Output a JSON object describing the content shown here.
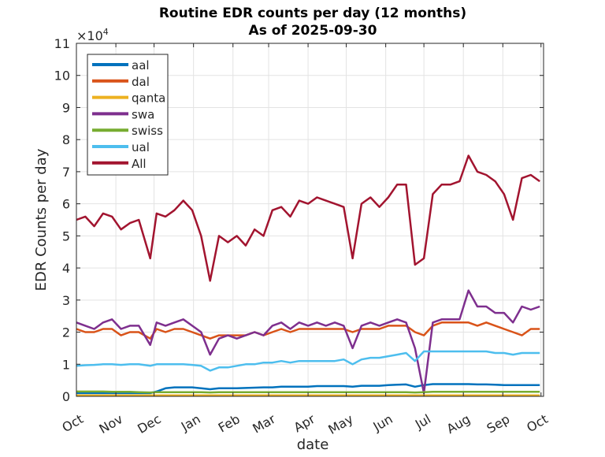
{
  "chart_data": {
    "type": "line",
    "title": "Routine EDR counts per day (12 months)",
    "subtitle": "As of 2025-09-30",
    "xlabel": "date",
    "ylabel": "EDR Counts per day",
    "y_exponent_label": "×10^4",
    "y_multiplier": 10000,
    "ylim": [
      0,
      11
    ],
    "yticks": [
      "0",
      "1",
      "2",
      "3",
      "4",
      "5",
      "6",
      "7",
      "8",
      "9",
      "10",
      "11"
    ],
    "xlim": [
      "2024-10-01",
      "2025-10-03"
    ],
    "xticks": [
      {
        "date": "2024-10-01",
        "label": "Oct"
      },
      {
        "date": "2024-11-01",
        "label": "Nov"
      },
      {
        "date": "2024-12-01",
        "label": "Dec"
      },
      {
        "date": "2025-01-01",
        "label": "Jan"
      },
      {
        "date": "2025-02-01",
        "label": "Feb"
      },
      {
        "date": "2025-03-01",
        "label": "Mar"
      },
      {
        "date": "2025-04-01",
        "label": "Apr"
      },
      {
        "date": "2025-05-01",
        "label": "May"
      },
      {
        "date": "2025-06-01",
        "label": "Jun"
      },
      {
        "date": "2025-07-01",
        "label": "Jul"
      },
      {
        "date": "2025-08-01",
        "label": "Aug"
      },
      {
        "date": "2025-09-01",
        "label": "Sep"
      },
      {
        "date": "2025-10-01",
        "label": "Oct"
      }
    ],
    "grid": true,
    "legend_position": "top-left",
    "x": [
      "2024-10-01",
      "2024-10-08",
      "2024-10-15",
      "2024-10-22",
      "2024-10-29",
      "2024-11-05",
      "2024-11-12",
      "2024-11-19",
      "2024-11-28",
      "2024-12-03",
      "2024-12-10",
      "2024-12-17",
      "2024-12-24",
      "2024-12-31",
      "2025-01-07",
      "2025-01-14",
      "2025-01-21",
      "2025-01-28",
      "2025-02-04",
      "2025-02-11",
      "2025-02-18",
      "2025-02-25",
      "2025-03-04",
      "2025-03-11",
      "2025-03-18",
      "2025-03-25",
      "2025-04-01",
      "2025-04-08",
      "2025-04-15",
      "2025-04-22",
      "2025-04-29",
      "2025-05-06",
      "2025-05-13",
      "2025-05-20",
      "2025-05-27",
      "2025-06-03",
      "2025-06-10",
      "2025-06-17",
      "2025-06-24",
      "2025-07-01",
      "2025-07-08",
      "2025-07-15",
      "2025-07-22",
      "2025-07-29",
      "2025-08-05",
      "2025-08-12",
      "2025-08-19",
      "2025-08-26",
      "2025-09-02",
      "2025-09-09",
      "2025-09-16",
      "2025-09-23",
      "2025-09-30"
    ],
    "series": [
      {
        "name": "aal",
        "color": "#0072BD",
        "values": [
          0.1,
          0.1,
          0.1,
          0.1,
          0.1,
          0.1,
          0.1,
          0.1,
          0.1,
          0.15,
          0.25,
          0.28,
          0.28,
          0.28,
          0.25,
          0.22,
          0.25,
          0.25,
          0.25,
          0.26,
          0.27,
          0.28,
          0.28,
          0.3,
          0.3,
          0.3,
          0.3,
          0.32,
          0.32,
          0.32,
          0.32,
          0.3,
          0.33,
          0.33,
          0.33,
          0.35,
          0.36,
          0.37,
          0.3,
          0.35,
          0.38,
          0.38,
          0.38,
          0.38,
          0.38,
          0.37,
          0.37,
          0.36,
          0.35,
          0.35,
          0.35,
          0.35,
          0.35
        ]
      },
      {
        "name": "dal",
        "color": "#D95319",
        "values": [
          2.1,
          2.0,
          2.0,
          2.1,
          2.1,
          1.9,
          2.0,
          2.0,
          1.8,
          2.1,
          2.0,
          2.1,
          2.1,
          2.0,
          1.9,
          1.8,
          1.9,
          1.9,
          1.9,
          1.9,
          2.0,
          1.9,
          2.0,
          2.1,
          2.0,
          2.1,
          2.1,
          2.1,
          2.1,
          2.1,
          2.1,
          2.0,
          2.1,
          2.1,
          2.1,
          2.2,
          2.2,
          2.2,
          2.0,
          1.9,
          2.2,
          2.3,
          2.3,
          2.3,
          2.3,
          2.2,
          2.3,
          2.2,
          2.1,
          2.0,
          1.9,
          2.1,
          2.1
        ]
      },
      {
        "name": "qanta",
        "color": "#EDB120",
        "values": [
          0.03,
          0.03,
          0.03,
          0.03,
          0.03,
          0.03,
          0.03,
          0.03,
          0.03,
          0.03,
          0.03,
          0.03,
          0.03,
          0.03,
          0.03,
          0.03,
          0.03,
          0.03,
          0.03,
          0.03,
          0.03,
          0.03,
          0.03,
          0.03,
          0.03,
          0.03,
          0.03,
          0.03,
          0.03,
          0.03,
          0.03,
          0.03,
          0.03,
          0.03,
          0.03,
          0.03,
          0.03,
          0.03,
          0.03,
          0.03,
          0.03,
          0.03,
          0.03,
          0.03,
          0.03,
          0.03,
          0.03,
          0.03,
          0.03,
          0.03,
          0.03,
          0.03,
          0.03
        ]
      },
      {
        "name": "swa",
        "color": "#7E2F8E",
        "values": [
          2.3,
          2.2,
          2.1,
          2.3,
          2.4,
          2.1,
          2.2,
          2.2,
          1.6,
          2.3,
          2.2,
          2.3,
          2.4,
          2.2,
          2.0,
          1.3,
          1.8,
          1.9,
          1.8,
          1.9,
          2.0,
          1.9,
          2.2,
          2.3,
          2.1,
          2.3,
          2.2,
          2.3,
          2.2,
          2.3,
          2.2,
          1.5,
          2.2,
          2.3,
          2.2,
          2.3,
          2.4,
          2.3,
          1.5,
          0.1,
          2.3,
          2.4,
          2.4,
          2.4,
          3.3,
          2.8,
          2.8,
          2.6,
          2.6,
          2.3,
          2.8,
          2.7,
          2.8
        ]
      },
      {
        "name": "swiss",
        "color": "#77AC30",
        "values": [
          0.15,
          0.15,
          0.15,
          0.15,
          0.14,
          0.14,
          0.14,
          0.13,
          0.12,
          0.13,
          0.13,
          0.13,
          0.13,
          0.13,
          0.13,
          0.12,
          0.13,
          0.13,
          0.13,
          0.13,
          0.13,
          0.13,
          0.13,
          0.13,
          0.13,
          0.13,
          0.13,
          0.13,
          0.13,
          0.13,
          0.13,
          0.13,
          0.13,
          0.13,
          0.13,
          0.13,
          0.13,
          0.13,
          0.12,
          0.13,
          0.14,
          0.14,
          0.14,
          0.14,
          0.14,
          0.14,
          0.14,
          0.14,
          0.14,
          0.14,
          0.14,
          0.14,
          0.14
        ]
      },
      {
        "name": "ual",
        "color": "#4DBEEE",
        "values": [
          0.95,
          0.97,
          0.98,
          1.0,
          1.0,
          0.98,
          1.0,
          1.0,
          0.95,
          1.0,
          1.0,
          1.0,
          1.0,
          0.98,
          0.95,
          0.8,
          0.9,
          0.9,
          0.95,
          1.0,
          1.0,
          1.05,
          1.05,
          1.1,
          1.05,
          1.1,
          1.1,
          1.1,
          1.1,
          1.1,
          1.15,
          1.0,
          1.15,
          1.2,
          1.2,
          1.25,
          1.3,
          1.35,
          1.1,
          1.4,
          1.4,
          1.4,
          1.4,
          1.4,
          1.4,
          1.4,
          1.4,
          1.35,
          1.35,
          1.3,
          1.35,
          1.35,
          1.35
        ]
      },
      {
        "name": "All",
        "color": "#A2142F",
        "values": [
          5.5,
          5.6,
          5.3,
          5.7,
          5.6,
          5.2,
          5.4,
          5.5,
          4.3,
          5.7,
          5.6,
          5.8,
          6.1,
          5.8,
          5.0,
          3.6,
          5.0,
          4.8,
          5.0,
          4.7,
          5.2,
          5.0,
          5.8,
          5.9,
          5.6,
          6.1,
          6.0,
          6.2,
          6.1,
          6.0,
          5.9,
          4.3,
          6.0,
          6.2,
          5.9,
          6.2,
          6.6,
          6.6,
          4.1,
          4.3,
          6.3,
          6.6,
          6.6,
          6.7,
          7.5,
          7.0,
          6.9,
          6.7,
          6.3,
          5.5,
          6.8,
          6.9,
          6.7
        ]
      }
    ]
  }
}
